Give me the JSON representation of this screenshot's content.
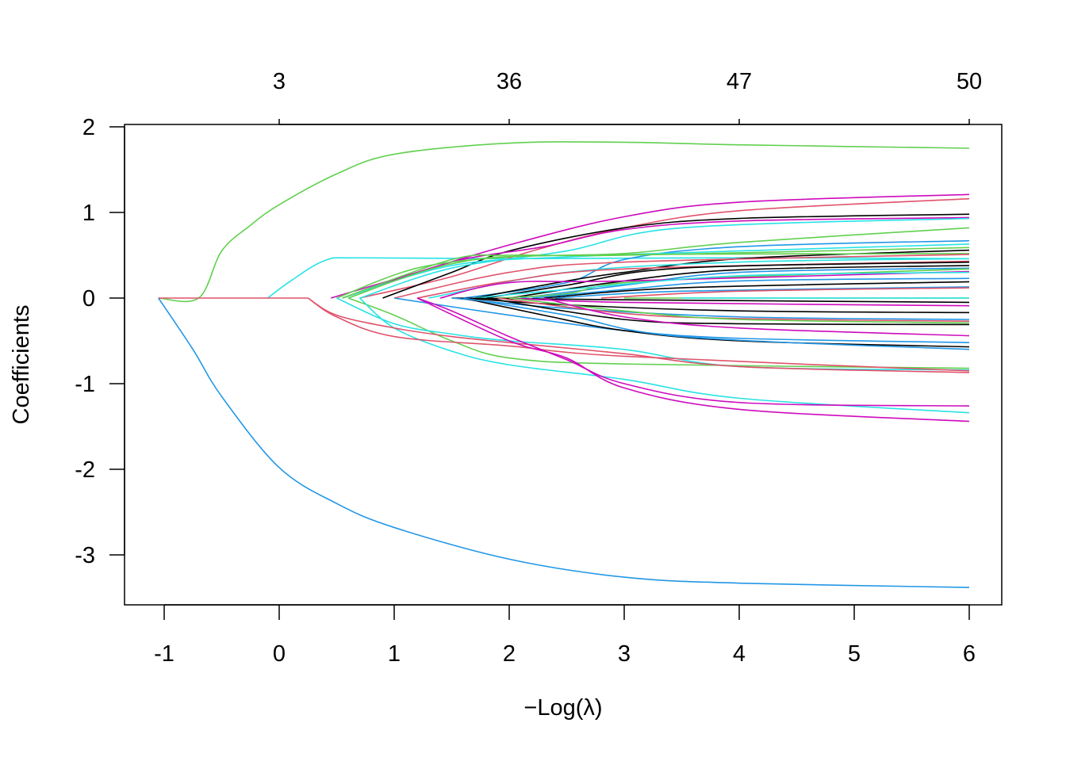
{
  "chart_data": {
    "type": "line",
    "title": "",
    "xlabel": "−Log(λ)",
    "ylabel": "Coefficients",
    "xlim": [
      -1.35,
      6.3
    ],
    "ylim": [
      -3.6,
      2.05
    ],
    "x_ticks": [
      -1,
      0,
      1,
      2,
      3,
      4,
      5,
      6
    ],
    "x_tick_labels": [
      "-1",
      "0",
      "1",
      "2",
      "3",
      "4",
      "5",
      "6"
    ],
    "y_ticks": [
      2,
      1,
      0,
      -1,
      -2,
      -3
    ],
    "y_tick_labels": [
      "2",
      "1",
      "0",
      "-1",
      "-2",
      "-3"
    ],
    "top_axis": {
      "ticks": [
        0,
        2,
        4,
        6
      ],
      "labels": [
        "3",
        "36",
        "47",
        "50"
      ]
    },
    "grid": false,
    "legend": "none",
    "palette": {
      "black": "#000000",
      "red": "#DF536B",
      "green": "#61D04F",
      "blue": "#2297E6",
      "cyan": "#28E2E5",
      "magenta": "#CD0BBC"
    },
    "series": [
      {
        "color": "#61D04F",
        "points": [
          [
            -1.05,
            0
          ],
          [
            -0.7,
            0
          ],
          [
            -0.5,
            0.55
          ],
          [
            -0.25,
            0.85
          ],
          [
            0,
            1.09
          ],
          [
            0.5,
            1.45
          ],
          [
            1,
            1.68
          ],
          [
            2,
            1.81
          ],
          [
            3,
            1.82
          ],
          [
            4,
            1.79
          ],
          [
            6,
            1.75
          ]
        ]
      },
      {
        "color": "#2297E6",
        "points": [
          [
            -1.05,
            0
          ],
          [
            -0.75,
            -0.6
          ],
          [
            -0.5,
            -1.15
          ],
          [
            0,
            -1.98
          ],
          [
            0.5,
            -2.4
          ],
          [
            1,
            -2.68
          ],
          [
            2,
            -3.05
          ],
          [
            3,
            -3.26
          ],
          [
            4,
            -3.33
          ],
          [
            6,
            -3.38
          ]
        ]
      },
      {
        "color": "#28E2E5",
        "points": [
          [
            -0.1,
            0
          ],
          [
            0.1,
            0.2
          ],
          [
            0.4,
            0.44
          ],
          [
            0.7,
            0.47
          ],
          [
            2,
            0.46
          ],
          [
            4,
            0.47
          ],
          [
            6,
            0.46
          ]
        ]
      },
      {
        "color": "#DF536B",
        "points": [
          [
            -1.05,
            0
          ],
          [
            0.25,
            0
          ]
        ]
      },
      {
        "color": "#CD0BBC",
        "points": [
          [
            0.45,
            0
          ],
          [
            1,
            0.22
          ],
          [
            2,
            0.62
          ],
          [
            3,
            0.95
          ],
          [
            4,
            1.12
          ],
          [
            6,
            1.21
          ]
        ]
      },
      {
        "color": "#DF536B",
        "points": [
          [
            0.7,
            0
          ],
          [
            1.5,
            0.25
          ],
          [
            2.2,
            0.55
          ],
          [
            3,
            0.82
          ],
          [
            4,
            1.02
          ],
          [
            6,
            1.16
          ]
        ]
      },
      {
        "color": "#000000",
        "points": [
          [
            0.9,
            0
          ],
          [
            1.5,
            0.3
          ],
          [
            2,
            0.55
          ],
          [
            3,
            0.82
          ],
          [
            4,
            0.93
          ],
          [
            6,
            0.98
          ]
        ]
      },
      {
        "color": "#CD0BBC",
        "points": [
          [
            0.55,
            0
          ],
          [
            1.5,
            0.42
          ],
          [
            2.3,
            0.6
          ],
          [
            3,
            0.8
          ],
          [
            4,
            0.9
          ],
          [
            6,
            0.94
          ]
        ]
      },
      {
        "color": "#28E2E5",
        "points": [
          [
            0.7,
            0
          ],
          [
            1.5,
            0.35
          ],
          [
            2.5,
            0.55
          ],
          [
            3.5,
            0.82
          ],
          [
            6,
            0.93
          ]
        ]
      },
      {
        "color": "#61D04F",
        "points": [
          [
            0.5,
            0
          ],
          [
            1.2,
            0.35
          ],
          [
            2,
            0.48
          ],
          [
            3,
            0.52
          ],
          [
            4,
            0.65
          ],
          [
            6,
            0.82
          ]
        ]
      },
      {
        "color": "#2297E6",
        "points": [
          [
            1.6,
            0
          ],
          [
            2.5,
            0.18
          ],
          [
            3,
            0.45
          ],
          [
            4,
            0.6
          ],
          [
            6,
            0.67
          ]
        ]
      },
      {
        "color": "#28E2E5",
        "points": [
          [
            0.55,
            0
          ],
          [
            1.5,
            0.38
          ],
          [
            2.5,
            0.48
          ],
          [
            4,
            0.55
          ],
          [
            6,
            0.63
          ]
        ]
      },
      {
        "color": "#61D04F",
        "points": [
          [
            0.55,
            0
          ],
          [
            1.5,
            0.45
          ],
          [
            2,
            0.5
          ],
          [
            3,
            0.5
          ],
          [
            6,
            0.59
          ]
        ]
      },
      {
        "color": "#000000",
        "points": [
          [
            1.7,
            0
          ],
          [
            2.5,
            0.2
          ],
          [
            3,
            0.3
          ],
          [
            4,
            0.46
          ],
          [
            6,
            0.56
          ]
        ]
      },
      {
        "color": "#61D04F",
        "points": [
          [
            0.6,
            0
          ],
          [
            1.5,
            0.4
          ],
          [
            2.5,
            0.5
          ],
          [
            6,
            0.52
          ]
        ]
      },
      {
        "color": "#DF536B",
        "points": [
          [
            1.0,
            0
          ],
          [
            2,
            0.3
          ],
          [
            3,
            0.42
          ],
          [
            6,
            0.51
          ]
        ]
      },
      {
        "color": "#28E2E5",
        "points": [
          [
            1.3,
            0
          ],
          [
            2.5,
            0.3
          ],
          [
            4,
            0.42
          ],
          [
            6,
            0.46
          ]
        ]
      },
      {
        "color": "#DF536B",
        "points": [
          [
            1.2,
            0
          ],
          [
            2,
            0.2
          ],
          [
            3,
            0.34
          ],
          [
            6,
            0.43
          ]
        ]
      },
      {
        "color": "#000000",
        "points": [
          [
            1.8,
            0
          ],
          [
            2.5,
            0.15
          ],
          [
            3.5,
            0.35
          ],
          [
            6,
            0.42
          ]
        ]
      },
      {
        "color": "#000000",
        "points": [
          [
            2,
            0
          ],
          [
            3,
            0.2
          ],
          [
            4,
            0.33
          ],
          [
            6,
            0.38
          ]
        ]
      },
      {
        "color": "#2297E6",
        "points": [
          [
            2.1,
            0
          ],
          [
            3,
            0.15
          ],
          [
            4,
            0.3
          ],
          [
            6,
            0.35
          ]
        ]
      },
      {
        "color": "#61D04F",
        "points": [
          [
            1.9,
            0
          ],
          [
            2.5,
            0.05
          ],
          [
            3.2,
            0.2
          ],
          [
            6,
            0.34
          ]
        ]
      },
      {
        "color": "#CD0BBC",
        "points": [
          [
            1.4,
            0
          ],
          [
            2,
            0.18
          ],
          [
            3,
            0.2
          ],
          [
            6,
            0.31
          ]
        ]
      },
      {
        "color": "#28E2E5",
        "points": [
          [
            1.7,
            0
          ],
          [
            2.5,
            0.1
          ],
          [
            4,
            0.26
          ],
          [
            6,
            0.3
          ]
        ]
      },
      {
        "color": "#2297E6",
        "points": [
          [
            2.2,
            0
          ],
          [
            3,
            0.1
          ],
          [
            4,
            0.2
          ],
          [
            6,
            0.23
          ]
        ]
      },
      {
        "color": "#000000",
        "points": [
          [
            2.3,
            0
          ],
          [
            3.5,
            0.12
          ],
          [
            6,
            0.19
          ]
        ]
      },
      {
        "color": "#2297E6",
        "points": [
          [
            2.4,
            0
          ],
          [
            3.5,
            0.08
          ],
          [
            6,
            0.13
          ]
        ]
      },
      {
        "color": "#DF536B",
        "points": [
          [
            2.8,
            0
          ],
          [
            4,
            0.08
          ],
          [
            6,
            0.12
          ]
        ]
      },
      {
        "color": "#61D04F",
        "points": [
          [
            3,
            0
          ],
          [
            6,
            0.0
          ]
        ]
      },
      {
        "color": "#28E2E5",
        "points": [
          [
            3.5,
            0
          ],
          [
            6,
            0.0
          ]
        ]
      },
      {
        "color": "#000000",
        "points": [
          [
            1.5,
            0
          ],
          [
            3,
            -0.02
          ],
          [
            6,
            -0.05
          ]
        ]
      },
      {
        "color": "#CD0BBC",
        "points": [
          [
            2,
            0
          ],
          [
            3,
            -0.05
          ],
          [
            6,
            -0.09
          ]
        ]
      },
      {
        "color": "#000000",
        "points": [
          [
            1.6,
            0
          ],
          [
            2.5,
            -0.08
          ],
          [
            4,
            -0.15
          ],
          [
            6,
            -0.17
          ]
        ]
      },
      {
        "color": "#2297E6",
        "points": [
          [
            1.5,
            0
          ],
          [
            2.5,
            -0.12
          ],
          [
            4,
            -0.22
          ],
          [
            6,
            -0.25
          ]
        ]
      },
      {
        "color": "#DF536B",
        "points": [
          [
            1.9,
            0
          ],
          [
            3,
            -0.18
          ],
          [
            4,
            -0.24
          ],
          [
            6,
            -0.27
          ]
        ]
      },
      {
        "color": "#61D04F",
        "points": [
          [
            2,
            0
          ],
          [
            3,
            -0.15
          ],
          [
            4,
            -0.25
          ],
          [
            6,
            -0.29
          ]
        ]
      },
      {
        "color": "#000000",
        "points": [
          [
            1.8,
            0
          ],
          [
            3,
            -0.25
          ],
          [
            4,
            -0.3
          ],
          [
            6,
            -0.31
          ]
        ]
      },
      {
        "color": "#CD0BBC",
        "points": [
          [
            2.3,
            0
          ],
          [
            3,
            -0.22
          ],
          [
            4,
            -0.35
          ],
          [
            6,
            -0.44
          ]
        ]
      },
      {
        "color": "#2297E6",
        "points": [
          [
            1,
            0
          ],
          [
            2,
            -0.2
          ],
          [
            3,
            -0.38
          ],
          [
            4,
            -0.47
          ],
          [
            6,
            -0.52
          ]
        ]
      },
      {
        "color": "#000000",
        "points": [
          [
            1.6,
            0
          ],
          [
            2.3,
            -0.2
          ],
          [
            3,
            -0.38
          ],
          [
            4,
            -0.5
          ],
          [
            6,
            -0.57
          ]
        ]
      },
      {
        "color": "#2297E6",
        "points": [
          [
            1.6,
            0
          ],
          [
            2.5,
            -0.2
          ],
          [
            3.5,
            -0.45
          ],
          [
            6,
            -0.6
          ]
        ]
      },
      {
        "color": "#61D04F",
        "points": [
          [
            0.6,
            0
          ],
          [
            1,
            -0.2
          ],
          [
            1.5,
            -0.5
          ],
          [
            2,
            -0.7
          ],
          [
            3,
            -0.77
          ],
          [
            6,
            -0.82
          ]
        ]
      },
      {
        "color": "#28E2E5",
        "points": [
          [
            0.7,
            0
          ],
          [
            1,
            -0.35
          ],
          [
            1.5,
            -0.62
          ],
          [
            2,
            -0.78
          ],
          [
            3,
            -0.95
          ],
          [
            4,
            -1.17
          ],
          [
            6,
            -1.34
          ]
        ]
      },
      {
        "color": "#28E2E5",
        "points": [
          [
            0.5,
            0
          ],
          [
            1,
            -0.3
          ],
          [
            1.5,
            -0.42
          ],
          [
            2,
            -0.5
          ],
          [
            3,
            -0.6
          ],
          [
            4,
            -0.8
          ],
          [
            6,
            -0.84
          ]
        ]
      },
      {
        "color": "#DF536B",
        "points": [
          [
            0.25,
            0
          ],
          [
            0.5,
            -0.2
          ],
          [
            1,
            -0.35
          ],
          [
            1.5,
            -0.45
          ],
          [
            2,
            -0.52
          ],
          [
            3,
            -0.65
          ],
          [
            4,
            -0.8
          ],
          [
            6,
            -0.87
          ]
        ]
      },
      {
        "color": "#DF536B",
        "points": [
          [
            0.25,
            0
          ],
          [
            0.5,
            -0.22
          ],
          [
            1,
            -0.45
          ],
          [
            2,
            -0.56
          ],
          [
            3,
            -0.68
          ],
          [
            6,
            -0.85
          ]
        ]
      },
      {
        "color": "#CD0BBC",
        "points": [
          [
            1.2,
            0
          ],
          [
            1.5,
            -0.15
          ],
          [
            2,
            -0.45
          ],
          [
            2.5,
            -0.72
          ],
          [
            3,
            -1.0
          ],
          [
            4,
            -1.22
          ],
          [
            6,
            -1.26
          ]
        ]
      },
      {
        "color": "#CD0BBC",
        "points": [
          [
            1.2,
            0
          ],
          [
            2,
            -0.5
          ],
          [
            2.5,
            -0.7
          ],
          [
            3,
            -1.05
          ],
          [
            4,
            -1.3
          ],
          [
            6,
            -1.44
          ]
        ]
      }
    ]
  }
}
